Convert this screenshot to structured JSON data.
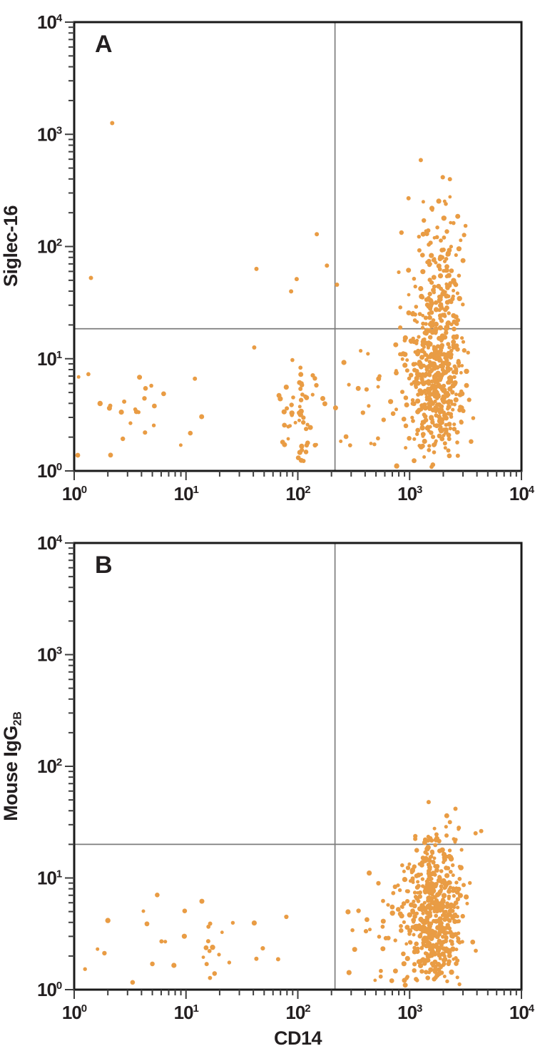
{
  "figure": {
    "xlabel": "CD14",
    "tick_base": "10",
    "colors": {
      "dot": "#E99C44",
      "gate_line": "#7D7D7D",
      "axis": "#1A1A1A",
      "tick": "#3F3F3F",
      "text": "#231F20",
      "background": "#FFFFFF"
    }
  },
  "chart_data": [
    {
      "type": "scatter",
      "panel_label": "A",
      "xlabel": "CD14",
      "ylabel": {
        "text": "Siglec-16",
        "sub": ""
      },
      "xscale": "log",
      "yscale": "log",
      "xlim": [
        1,
        10000
      ],
      "ylim": [
        1,
        10000
      ],
      "x_tick_exponents": [
        0,
        1,
        2,
        3,
        4
      ],
      "y_tick_exponents": [
        0,
        1,
        2,
        3,
        4
      ],
      "grid": false,
      "legend": false,
      "quadrant_gate": {
        "x": 215,
        "y": 18.5
      },
      "clusters_log10": [
        {
          "name": "cd14_high_main",
          "n": 520,
          "cx": 3.22,
          "cy": 0.88,
          "sx": 0.13,
          "sy": 0.42,
          "xmin": 2.45,
          "xmax": 3.62,
          "ymin": 0.03,
          "ymax": 1.95,
          "seed": 11
        },
        {
          "name": "cd14_high_upper_plume",
          "n": 85,
          "cx": 3.27,
          "cy": 1.9,
          "sx": 0.11,
          "sy": 0.32,
          "xmin": 2.9,
          "xmax": 3.6,
          "ymin": 1.27,
          "ymax": 2.62,
          "seed": 22
        },
        {
          "name": "cd14_mid_column",
          "n": 55,
          "cx": 2.03,
          "cy": 0.42,
          "sx": 0.09,
          "sy": 0.32,
          "xmin": 1.75,
          "xmax": 2.3,
          "ymin": 0.04,
          "ymax": 1.15,
          "seed": 33
        },
        {
          "name": "cd14_low_scatter",
          "n": 26,
          "cx": 0.5,
          "cy": 0.45,
          "sx": 0.4,
          "sy": 0.28,
          "xmin": 0.03,
          "xmax": 1.62,
          "ymin": 0.05,
          "ymax": 1.0,
          "seed": 44
        },
        {
          "name": "cd14_midhigh_sparse",
          "n": 24,
          "cx": 2.72,
          "cy": 0.55,
          "sx": 0.18,
          "sy": 0.38,
          "xmin": 2.32,
          "xmax": 3.0,
          "ymin": 0.04,
          "ymax": 1.25,
          "seed": 55
        }
      ],
      "outlier_points_log10": [
        [
          0.34,
          3.1
        ],
        [
          0.15,
          1.72
        ],
        [
          1.63,
          1.8
        ],
        [
          1.94,
          1.6
        ],
        [
          1.99,
          1.71
        ],
        [
          2.17,
          2.11
        ],
        [
          2.26,
          1.83
        ],
        [
          3.1,
          2.77
        ],
        [
          2.35,
          1.66
        ],
        [
          1.61,
          1.1
        ],
        [
          3.36,
          2.6
        ],
        [
          2.99,
          2.43
        ]
      ]
    },
    {
      "type": "scatter",
      "panel_label": "B",
      "xlabel": "CD14",
      "ylabel": {
        "text": "Mouse IgG",
        "sub": "2B"
      },
      "xscale": "log",
      "yscale": "log",
      "xlim": [
        1,
        10000
      ],
      "ylim": [
        1,
        10000
      ],
      "x_tick_exponents": [
        0,
        1,
        2,
        3,
        4
      ],
      "y_tick_exponents": [
        0,
        1,
        2,
        3,
        4
      ],
      "grid": false,
      "legend": false,
      "quadrant_gate": {
        "x": 215,
        "y": 20
      },
      "clusters_log10": [
        {
          "name": "cd14_high_main",
          "n": 520,
          "cx": 3.22,
          "cy": 0.72,
          "sx": 0.13,
          "sy": 0.35,
          "xmin": 2.5,
          "xmax": 3.62,
          "ymin": 0.03,
          "ymax": 1.3,
          "seed": 66
        },
        {
          "name": "cd14_high_spill_above_gate",
          "n": 18,
          "cx": 3.28,
          "cy": 1.4,
          "sx": 0.1,
          "sy": 0.09,
          "xmin": 3.0,
          "xmax": 3.55,
          "ymin": 1.31,
          "ymax": 1.6,
          "seed": 77
        },
        {
          "name": "cd14_high_left_tail",
          "n": 34,
          "cx": 2.78,
          "cy": 0.45,
          "sx": 0.16,
          "sy": 0.3,
          "xmin": 2.4,
          "xmax": 3.05,
          "ymin": 0.03,
          "ymax": 1.05,
          "seed": 88
        },
        {
          "name": "cd14_low_scatter",
          "n": 34,
          "cx": 0.85,
          "cy": 0.4,
          "sx": 0.55,
          "sy": 0.27,
          "xmin": 0.03,
          "xmax": 2.25,
          "ymin": 0.04,
          "ymax": 0.85,
          "seed": 99
        }
      ],
      "outlier_points_log10": [
        [
          3.17,
          1.68
        ],
        [
          3.41,
          1.62
        ],
        [
          3.36,
          1.5
        ],
        [
          3.44,
          1.45
        ],
        [
          3.59,
          1.4
        ],
        [
          3.24,
          1.39
        ],
        [
          3.33,
          1.38
        ],
        [
          3.64,
          1.42
        ],
        [
          3.05,
          1.35
        ]
      ]
    }
  ]
}
